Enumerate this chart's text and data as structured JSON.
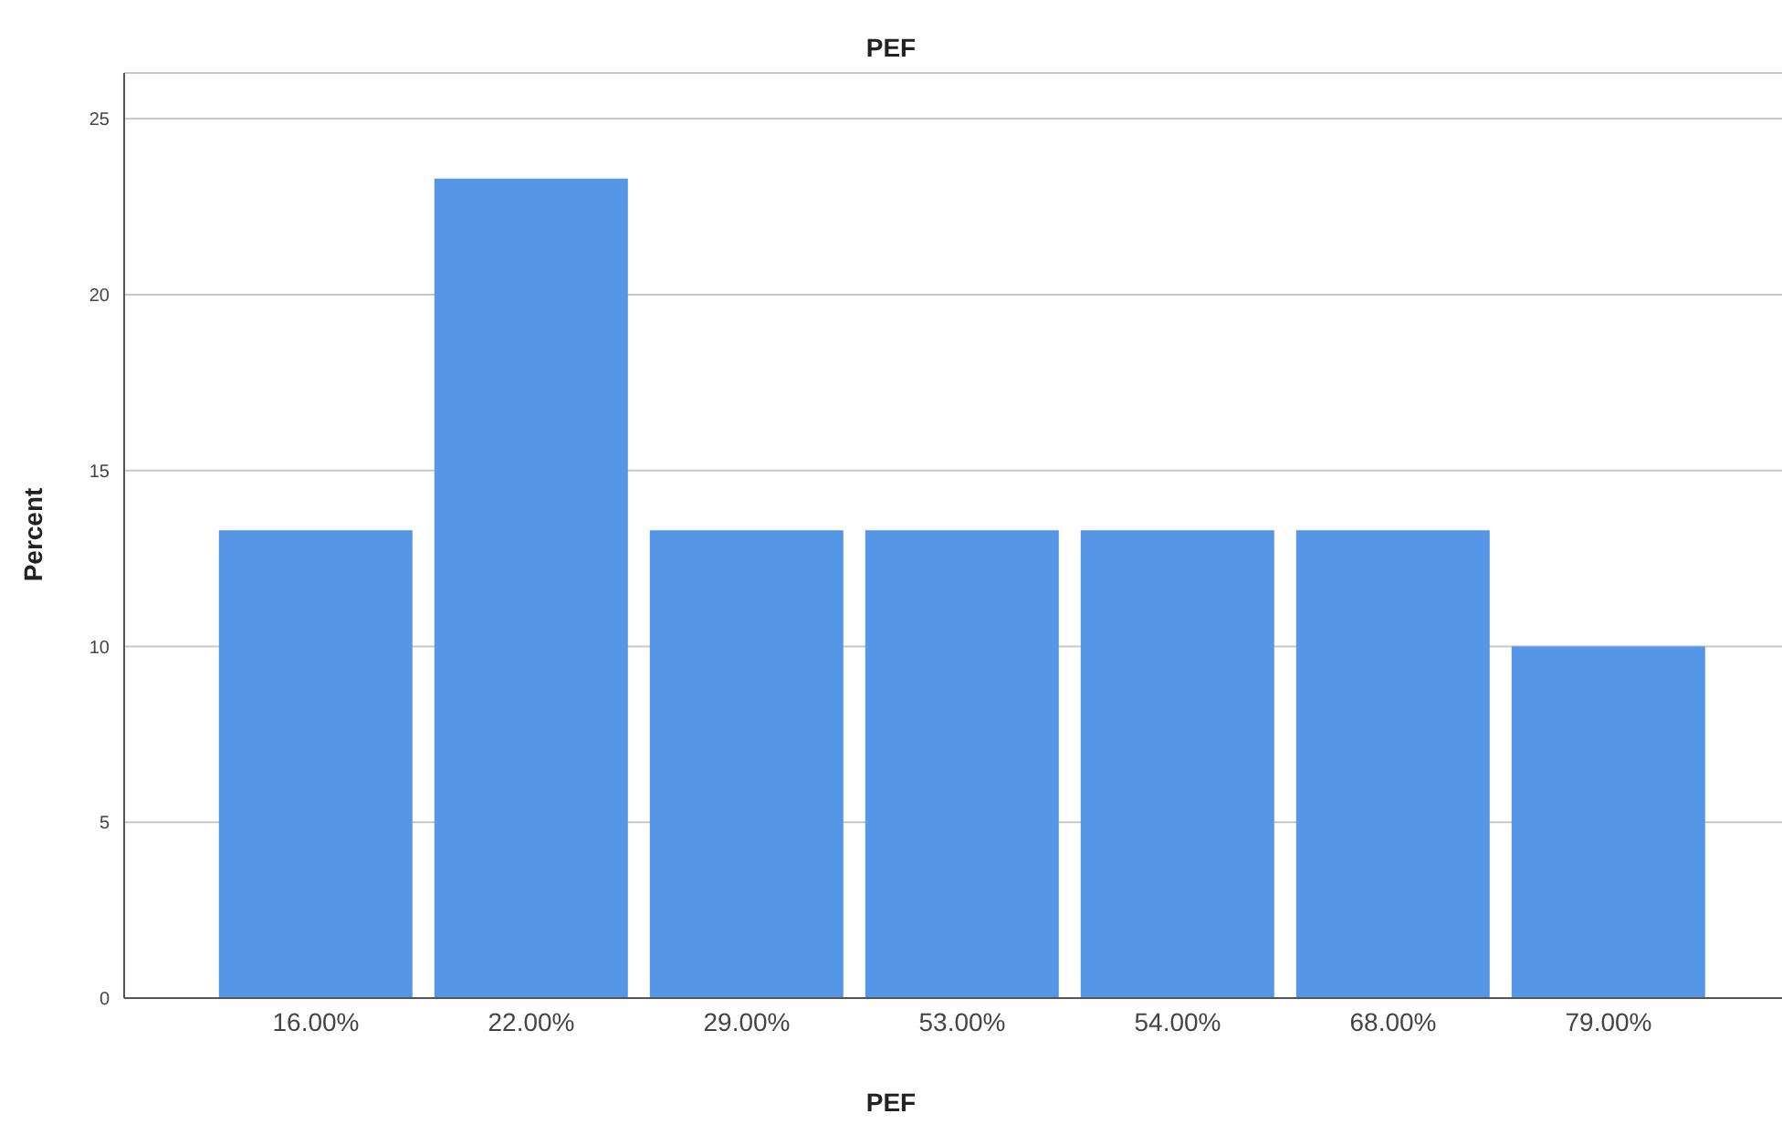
{
  "chart_data": {
    "type": "bar",
    "title": "PEF",
    "xlabel": "PEF",
    "ylabel": "Percent",
    "categories": [
      "16.00%",
      "22.00%",
      "29.00%",
      "53.00%",
      "54.00%",
      "68.00%",
      "79.00%"
    ],
    "values": [
      13.3,
      23.3,
      13.3,
      13.3,
      13.3,
      13.3,
      10
    ],
    "color": "#5596e6",
    "ylim": [
      0,
      26.3
    ],
    "yticks": [
      0,
      5,
      10,
      15,
      20,
      25
    ],
    "grid": "y",
    "legend": false
  }
}
